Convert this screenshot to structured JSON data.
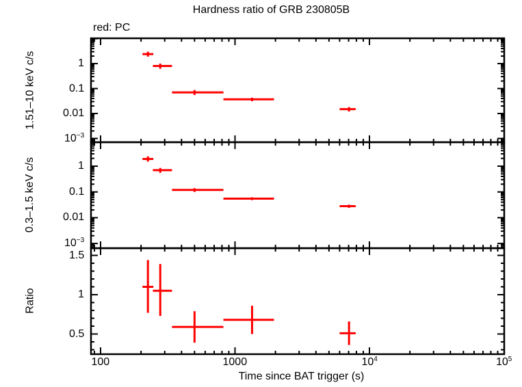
{
  "title": "Hardness ratio of GRB 230805B",
  "subtitle": "red: PC",
  "colors": {
    "series": "#ff0000",
    "axes": "#000000",
    "background": "#ffffff"
  },
  "xaxis": {
    "label": "Time since BAT trigger (s)",
    "ticks": [
      {
        "label": "100",
        "base": "",
        "exp": ""
      },
      {
        "label": "1000",
        "base": "",
        "exp": ""
      },
      {
        "label": "",
        "base": "10",
        "exp": "4"
      },
      {
        "label": "",
        "base": "10",
        "exp": "5"
      }
    ]
  },
  "panels": [
    {
      "ylabel": "1.51–10 keV c/s",
      "ticks": [
        {
          "label": "1",
          "base": "",
          "exp": ""
        },
        {
          "label": "0.1",
          "base": "",
          "exp": ""
        },
        {
          "label": "0.01",
          "base": "",
          "exp": ""
        },
        {
          "label": "",
          "base": "10",
          "exp": "−3"
        }
      ]
    },
    {
      "ylabel": "0.3–1.5 keV c/s",
      "ticks": [
        {
          "label": "1",
          "base": "",
          "exp": ""
        },
        {
          "label": "0.1",
          "base": "",
          "exp": ""
        },
        {
          "label": "0.01",
          "base": "",
          "exp": ""
        },
        {
          "label": "",
          "base": "10",
          "exp": "−3"
        }
      ]
    },
    {
      "ylabel": "Ratio",
      "ticks": [
        {
          "label": "1.5",
          "base": "",
          "exp": ""
        },
        {
          "label": "1",
          "base": "",
          "exp": ""
        },
        {
          "label": "0.5",
          "base": "",
          "exp": ""
        }
      ]
    }
  ],
  "chart_data": [
    {
      "type": "scatter",
      "title": "Hardness ratio of GRB 230805B",
      "subtitle": "red: PC",
      "xlabel": "Time since BAT trigger (s)",
      "ylabel": "1.51–10 keV c/s",
      "xscale": "log",
      "yscale": "log",
      "xlim": [
        85,
        100000
      ],
      "ylim": [
        0.0007,
        8
      ],
      "series": [
        {
          "name": "PC",
          "color": "#ff0000",
          "x": [
            225,
            278,
            500,
            1340,
            7050
          ],
          "xerr_low": [
            205,
            245,
            340,
            820,
            6000
          ],
          "xerr_high": [
            247,
            340,
            820,
            1950,
            7900
          ],
          "y": [
            2.4,
            0.8,
            0.07,
            0.037,
            0.015
          ],
          "yerr_low": [
            1.9,
            0.62,
            0.055,
            0.031,
            0.012
          ],
          "yerr_high": [
            3.0,
            1.0,
            0.087,
            0.043,
            0.018
          ]
        }
      ]
    },
    {
      "type": "scatter",
      "xlabel": "Time since BAT trigger (s)",
      "ylabel": "0.3–1.5 keV c/s",
      "xscale": "log",
      "yscale": "log",
      "xlim": [
        85,
        100000
      ],
      "ylim": [
        0.0007,
        8
      ],
      "series": [
        {
          "name": "PC",
          "color": "#ff0000",
          "x": [
            225,
            278,
            500,
            1340,
            7050
          ],
          "xerr_low": [
            205,
            245,
            340,
            820,
            6000
          ],
          "xerr_high": [
            247,
            340,
            820,
            1950,
            7900
          ],
          "y": [
            1.9,
            0.7,
            0.12,
            0.055,
            0.028
          ],
          "yerr_low": [
            1.5,
            0.55,
            0.1,
            0.048,
            0.024
          ],
          "yerr_high": [
            2.4,
            0.85,
            0.14,
            0.062,
            0.032
          ]
        }
      ]
    },
    {
      "type": "scatter",
      "xlabel": "Time since BAT trigger (s)",
      "ylabel": "Ratio",
      "xscale": "log",
      "yscale": "linear",
      "xlim": [
        85,
        100000
      ],
      "ylim": [
        0.28,
        1.58
      ],
      "series": [
        {
          "name": "PC",
          "color": "#ff0000",
          "x": [
            225,
            278,
            500,
            1340,
            7050
          ],
          "xerr_low": [
            205,
            245,
            340,
            820,
            6000
          ],
          "xerr_high": [
            247,
            340,
            820,
            1950,
            7900
          ],
          "y": [
            1.1,
            1.05,
            0.59,
            0.68,
            0.51
          ],
          "yerr_low": [
            0.77,
            0.73,
            0.39,
            0.5,
            0.36
          ],
          "yerr_high": [
            1.44,
            1.39,
            0.79,
            0.86,
            0.66
          ]
        }
      ]
    }
  ]
}
